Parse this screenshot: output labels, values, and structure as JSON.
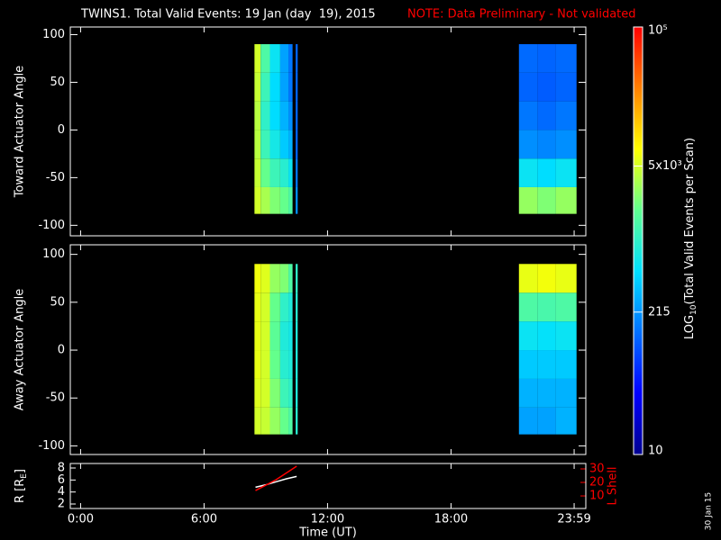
{
  "title": "TWINS1. Total Valid Events: 19 Jan (day  19), 2015",
  "note": "NOTE: Data Preliminary - Not validated",
  "footer_date": "30 Jan 15",
  "colorbar": {
    "zlim": [
      10,
      100000
    ],
    "log": true,
    "colorscale": [
      "#000090",
      "#0000ff",
      "#0070ff",
      "#00e0ff",
      "#60ff90",
      "#ffff00",
      "#ff8000",
      "#ff0000"
    ],
    "ticks": [
      10,
      215,
      {
        "value": 5000,
        "label": "5x10³"
      },
      {
        "value": 100000,
        "label": "10⁵"
      }
    ],
    "label_parts": [
      "LOG",
      "10",
      "(Total Valid Events per Scan)"
    ]
  },
  "chart_data": [
    {
      "type": "heatmap",
      "ylabel": "Toward Actuator Angle",
      "x_bins": [
        8.45,
        8.75,
        9.2,
        9.7,
        10.1,
        10.3,
        10.45,
        10.55,
        21.3,
        22.2,
        23.1,
        24.1
      ],
      "y_bins": [
        -88,
        -60,
        -30,
        0,
        30,
        60,
        90
      ],
      "values": [
        [
          5000,
          4500,
          4000,
          4000,
          4500,
          5000
        ],
        [
          3500,
          2000,
          1200,
          1000,
          1200,
          1500
        ],
        [
          2500,
          1200,
          700,
          500,
          500,
          600
        ],
        [
          2000,
          900,
          400,
          300,
          250,
          250
        ],
        [
          1500,
          600,
          300,
          200,
          150,
          150
        ],
        [
          null,
          null,
          null,
          null,
          null,
          null
        ],
        [
          200,
          150,
          120,
          120,
          120,
          120
        ],
        [
          null,
          null,
          null,
          null,
          null,
          null
        ],
        [
          3000,
          600,
          200,
          150,
          120,
          130
        ],
        [
          2500,
          500,
          180,
          130,
          110,
          120
        ],
        [
          3000,
          600,
          200,
          150,
          120,
          130
        ]
      ],
      "ylim": [
        -111,
        108
      ],
      "yticks": [
        -100,
        -50,
        0,
        50,
        100
      ]
    },
    {
      "type": "heatmap",
      "ylabel": "Away Actuator Angle",
      "x_bins": [
        8.45,
        8.75,
        9.2,
        9.7,
        10.1,
        10.3,
        10.45,
        10.55,
        21.3,
        22.2,
        23.1,
        24.1
      ],
      "y_bins": [
        -88,
        -60,
        -30,
        0,
        30,
        60,
        90
      ],
      "values": [
        [
          5000,
          5500,
          6000,
          6000,
          6000,
          6500
        ],
        [
          4500,
          5000,
          5000,
          5000,
          5000,
          5500
        ],
        [
          3000,
          2500,
          2000,
          1800,
          2000,
          3000
        ],
        [
          2000,
          1200,
          900,
          800,
          1000,
          2500
        ],
        [
          1500,
          1000,
          800,
          700,
          800,
          1500
        ],
        [
          null,
          null,
          null,
          null,
          null,
          null
        ],
        [
          900,
          800,
          800,
          800,
          900,
          1000
        ],
        [
          null,
          null,
          null,
          null,
          null,
          null
        ],
        [
          250,
          300,
          400,
          600,
          1500,
          6000
        ],
        [
          250,
          300,
          400,
          550,
          1400,
          6500
        ],
        [
          300,
          300,
          400,
          600,
          1500,
          6000
        ]
      ],
      "ylim": [
        -109,
        110
      ],
      "yticks": [
        -100,
        -50,
        0,
        50,
        100
      ]
    },
    {
      "type": "line",
      "ylabel_parts": [
        "R [R",
        "E",
        "]"
      ],
      "y2label": "L Shell",
      "xlabel": "Time (UT)",
      "x": [
        8.5,
        9.0,
        9.5,
        10.0,
        10.5
      ],
      "series": [
        {
          "name": "R",
          "color": "#ffffff",
          "values": [
            4.8,
            5.2,
            5.7,
            6.2,
            6.6
          ]
        },
        {
          "name": "L Shell",
          "color": "#ff0000",
          "axis": "y2",
          "values": [
            14,
            18,
            22,
            27,
            32
          ]
        }
      ],
      "xlim": [
        -0.5,
        24.55
      ],
      "xticks": [
        {
          "value": 0,
          "label": "0:00"
        },
        {
          "value": 6,
          "label": "6:00"
        },
        {
          "value": 12,
          "label": "12:00"
        },
        {
          "value": 18,
          "label": "18:00"
        },
        {
          "value": 23.983,
          "label": "23:59"
        }
      ],
      "ylim": [
        1.25,
        8.75
      ],
      "yticks": [
        2,
        4,
        6,
        8
      ],
      "y2lim": [
        0.7,
        34
      ],
      "y2ticks": [
        10,
        20,
        30
      ],
      "y2color": "#ff0000"
    }
  ]
}
